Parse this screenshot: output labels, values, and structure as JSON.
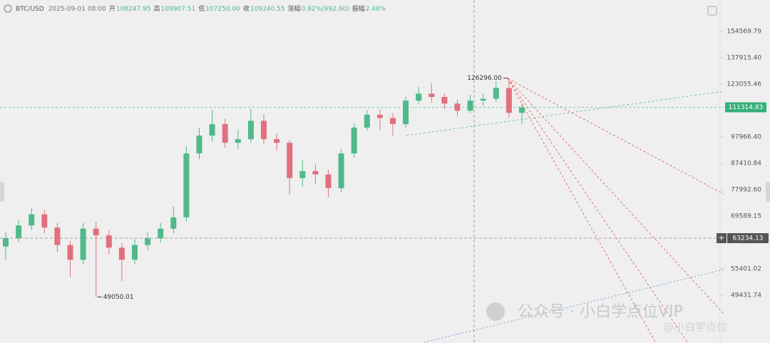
{
  "chart_data": {
    "type": "candlestick",
    "header": {
      "symbol": "BTC/USD",
      "time": "2025-09-01 08:00",
      "fields": [
        {
          "label": "开",
          "value": "108247.95"
        },
        {
          "label": "高",
          "value": "109907.51"
        },
        {
          "label": "低",
          "value": "107250.00"
        },
        {
          "label": "收",
          "value": "109240.55"
        },
        {
          "label": "涨幅",
          "value": "0.92%(992.60)"
        },
        {
          "label": "振幅",
          "value": "2.46%"
        }
      ]
    },
    "log_scale": true,
    "ylim": [
      40200,
      177000
    ],
    "yticks": [
      154569.79,
      {
        "value": 137915.4,
        "label": "137915.40"
      },
      123055.46,
      {
        "value": 97966.4,
        "label": "97966.40"
      },
      87410.84,
      {
        "value": 77992.6,
        "label": "77992.60"
      },
      69589.15,
      55401.02,
      49431.74
    ],
    "up_color": "#4fb98a",
    "down_color": "#e0707e",
    "open": [
      61000,
      63230,
      66800,
      70100,
      66200,
      61400,
      57600,
      65900,
      64000,
      60700,
      57600,
      61400,
      63200,
      65900,
      69200,
      91200,
      98500,
      103500,
      95500,
      97000,
      105000,
      97000,
      95500,
      82000,
      84500,
      83300,
      78500,
      91200,
      102000,
      107800,
      106300,
      103500,
      114600,
      118100,
      116400,
      113100,
      109700,
      114600,
      115500,
      121000,
      108700
    ],
    "high": [
      65000,
      68500,
      72000,
      71500,
      67500,
      62500,
      67500,
      67800,
      65500,
      62000,
      63000,
      64800,
      67500,
      72500,
      94000,
      102000,
      110000,
      106000,
      101000,
      110500,
      108000,
      99500,
      96500,
      88500,
      87000,
      85000,
      93000,
      104000,
      110000,
      110500,
      108500,
      116500,
      121500,
      123500,
      118000,
      115000,
      117500,
      118000,
      124500,
      126296,
      113000
    ],
    "low": [
      57500,
      62000,
      65500,
      64500,
      59500,
      53500,
      56500,
      49050.01,
      59000,
      52500,
      56500,
      60000,
      62000,
      64500,
      68000,
      89000,
      96000,
      93500,
      93000,
      95500,
      95000,
      92500,
      76500,
      79000,
      80000,
      75500,
      77000,
      89500,
      100500,
      101000,
      98500,
      102000,
      113000,
      113500,
      110500,
      107500,
      108500,
      112000,
      114000,
      106500,
      103500
    ],
    "close": [
      63230,
      66800,
      70100,
      66200,
      61400,
      57600,
      65900,
      64000,
      60700,
      57600,
      61400,
      63200,
      65900,
      69200,
      91200,
      98500,
      103500,
      95500,
      97000,
      105000,
      97000,
      95500,
      82000,
      84500,
      83300,
      78500,
      91200,
      102000,
      107800,
      106300,
      103500,
      114600,
      118100,
      116400,
      113100,
      109700,
      114600,
      115500,
      121000,
      108700,
      111300
    ],
    "high_marker": {
      "value": 126296,
      "label": "126296.00"
    },
    "low_marker": 49050.01,
    "price_line": 111314.83,
    "crosshair_price": 63234.13,
    "watermark": "公众号 · 小白学点位VIP",
    "watermark_handle": "@小白学点位"
  }
}
